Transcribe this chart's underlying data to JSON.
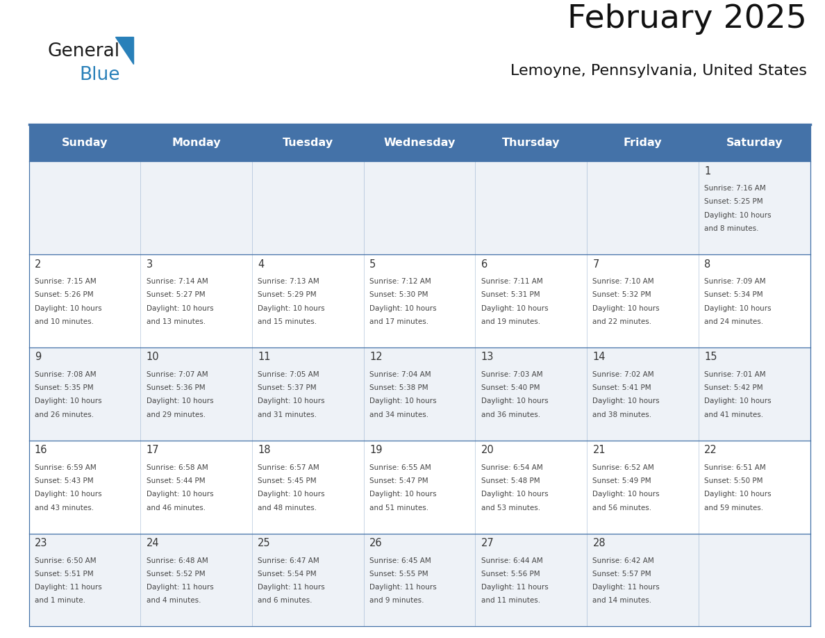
{
  "title": "February 2025",
  "subtitle": "Lemoyne, Pennsylvania, United States",
  "days_of_week": [
    "Sunday",
    "Monday",
    "Tuesday",
    "Wednesday",
    "Thursday",
    "Friday",
    "Saturday"
  ],
  "header_bg": "#4472a8",
  "header_text": "#ffffff",
  "cell_bg_light": "#eef2f7",
  "cell_bg_white": "#ffffff",
  "border_color": "#4472a8",
  "text_color": "#444444",
  "day_num_color": "#333333",
  "logo_general_color": "#1a1a1a",
  "logo_blue_color": "#2980b9",
  "calendar_data": [
    [
      null,
      null,
      null,
      null,
      null,
      null,
      {
        "day": 1,
        "sunrise": "7:16 AM",
        "sunset": "5:25 PM",
        "daylight_line1": "Daylight: 10 hours",
        "daylight_line2": "and 8 minutes."
      }
    ],
    [
      {
        "day": 2,
        "sunrise": "7:15 AM",
        "sunset": "5:26 PM",
        "daylight_line1": "Daylight: 10 hours",
        "daylight_line2": "and 10 minutes."
      },
      {
        "day": 3,
        "sunrise": "7:14 AM",
        "sunset": "5:27 PM",
        "daylight_line1": "Daylight: 10 hours",
        "daylight_line2": "and 13 minutes."
      },
      {
        "day": 4,
        "sunrise": "7:13 AM",
        "sunset": "5:29 PM",
        "daylight_line1": "Daylight: 10 hours",
        "daylight_line2": "and 15 minutes."
      },
      {
        "day": 5,
        "sunrise": "7:12 AM",
        "sunset": "5:30 PM",
        "daylight_line1": "Daylight: 10 hours",
        "daylight_line2": "and 17 minutes."
      },
      {
        "day": 6,
        "sunrise": "7:11 AM",
        "sunset": "5:31 PM",
        "daylight_line1": "Daylight: 10 hours",
        "daylight_line2": "and 19 minutes."
      },
      {
        "day": 7,
        "sunrise": "7:10 AM",
        "sunset": "5:32 PM",
        "daylight_line1": "Daylight: 10 hours",
        "daylight_line2": "and 22 minutes."
      },
      {
        "day": 8,
        "sunrise": "7:09 AM",
        "sunset": "5:34 PM",
        "daylight_line1": "Daylight: 10 hours",
        "daylight_line2": "and 24 minutes."
      }
    ],
    [
      {
        "day": 9,
        "sunrise": "7:08 AM",
        "sunset": "5:35 PM",
        "daylight_line1": "Daylight: 10 hours",
        "daylight_line2": "and 26 minutes."
      },
      {
        "day": 10,
        "sunrise": "7:07 AM",
        "sunset": "5:36 PM",
        "daylight_line1": "Daylight: 10 hours",
        "daylight_line2": "and 29 minutes."
      },
      {
        "day": 11,
        "sunrise": "7:05 AM",
        "sunset": "5:37 PM",
        "daylight_line1": "Daylight: 10 hours",
        "daylight_line2": "and 31 minutes."
      },
      {
        "day": 12,
        "sunrise": "7:04 AM",
        "sunset": "5:38 PM",
        "daylight_line1": "Daylight: 10 hours",
        "daylight_line2": "and 34 minutes."
      },
      {
        "day": 13,
        "sunrise": "7:03 AM",
        "sunset": "5:40 PM",
        "daylight_line1": "Daylight: 10 hours",
        "daylight_line2": "and 36 minutes."
      },
      {
        "day": 14,
        "sunrise": "7:02 AM",
        "sunset": "5:41 PM",
        "daylight_line1": "Daylight: 10 hours",
        "daylight_line2": "and 38 minutes."
      },
      {
        "day": 15,
        "sunrise": "7:01 AM",
        "sunset": "5:42 PM",
        "daylight_line1": "Daylight: 10 hours",
        "daylight_line2": "and 41 minutes."
      }
    ],
    [
      {
        "day": 16,
        "sunrise": "6:59 AM",
        "sunset": "5:43 PM",
        "daylight_line1": "Daylight: 10 hours",
        "daylight_line2": "and 43 minutes."
      },
      {
        "day": 17,
        "sunrise": "6:58 AM",
        "sunset": "5:44 PM",
        "daylight_line1": "Daylight: 10 hours",
        "daylight_line2": "and 46 minutes."
      },
      {
        "day": 18,
        "sunrise": "6:57 AM",
        "sunset": "5:45 PM",
        "daylight_line1": "Daylight: 10 hours",
        "daylight_line2": "and 48 minutes."
      },
      {
        "day": 19,
        "sunrise": "6:55 AM",
        "sunset": "5:47 PM",
        "daylight_line1": "Daylight: 10 hours",
        "daylight_line2": "and 51 minutes."
      },
      {
        "day": 20,
        "sunrise": "6:54 AM",
        "sunset": "5:48 PM",
        "daylight_line1": "Daylight: 10 hours",
        "daylight_line2": "and 53 minutes."
      },
      {
        "day": 21,
        "sunrise": "6:52 AM",
        "sunset": "5:49 PM",
        "daylight_line1": "Daylight: 10 hours",
        "daylight_line2": "and 56 minutes."
      },
      {
        "day": 22,
        "sunrise": "6:51 AM",
        "sunset": "5:50 PM",
        "daylight_line1": "Daylight: 10 hours",
        "daylight_line2": "and 59 minutes."
      }
    ],
    [
      {
        "day": 23,
        "sunrise": "6:50 AM",
        "sunset": "5:51 PM",
        "daylight_line1": "Daylight: 11 hours",
        "daylight_line2": "and 1 minute."
      },
      {
        "day": 24,
        "sunrise": "6:48 AM",
        "sunset": "5:52 PM",
        "daylight_line1": "Daylight: 11 hours",
        "daylight_line2": "and 4 minutes."
      },
      {
        "day": 25,
        "sunrise": "6:47 AM",
        "sunset": "5:54 PM",
        "daylight_line1": "Daylight: 11 hours",
        "daylight_line2": "and 6 minutes."
      },
      {
        "day": 26,
        "sunrise": "6:45 AM",
        "sunset": "5:55 PM",
        "daylight_line1": "Daylight: 11 hours",
        "daylight_line2": "and 9 minutes."
      },
      {
        "day": 27,
        "sunrise": "6:44 AM",
        "sunset": "5:56 PM",
        "daylight_line1": "Daylight: 11 hours",
        "daylight_line2": "and 11 minutes."
      },
      {
        "day": 28,
        "sunrise": "6:42 AM",
        "sunset": "5:57 PM",
        "daylight_line1": "Daylight: 11 hours",
        "daylight_line2": "and 14 minutes."
      },
      null
    ]
  ]
}
